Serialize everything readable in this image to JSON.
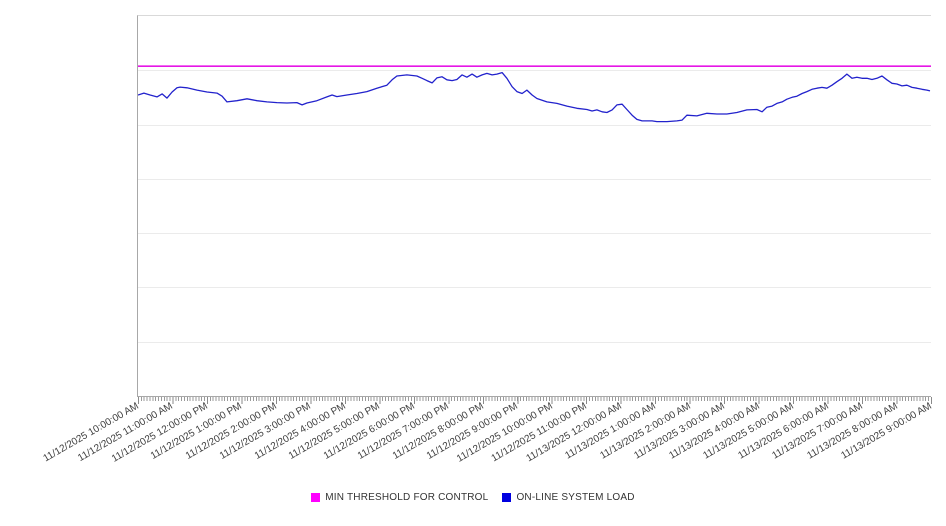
{
  "page": {
    "background": "#ffffff"
  },
  "legend": {
    "items": [
      {
        "label": "MIN THRESHOLD FOR CONTROL",
        "color": "#ff00ff"
      },
      {
        "label": "ON-LINE SYSTEM LOAD",
        "color": "#0000e0"
      }
    ]
  },
  "chart_data": {
    "type": "line",
    "title": "",
    "xlabel": "",
    "ylabel": "",
    "grid": true,
    "legend_position": "bottom-center",
    "y_axis": {
      "tick_labels_visible": false,
      "gridline_count": 6,
      "range_pct": [
        0,
        100
      ]
    },
    "x_axis": {
      "hours_span": 23,
      "minor_tick_interval_minutes": 5,
      "tick_labels": [
        "11/12/2025 10:00:00 AM",
        "11/12/2025 11:00:00 AM",
        "11/12/2025 12:00:00 PM",
        "11/12/2025 1:00:00 PM",
        "11/12/2025 2:00:00 PM",
        "11/12/2025 3:00:00 PM",
        "11/12/2025 4:00:00 PM",
        "11/12/2025 5:00:00 PM",
        "11/12/2025 6:00:00 PM",
        "11/12/2025 7:00:00 PM",
        "11/12/2025 8:00:00 PM",
        "11/12/2025 9:00:00 PM",
        "11/12/2025 10:00:00 PM",
        "11/12/2025 11:00:00 PM",
        "11/13/2025 12:00:00 AM",
        "11/13/2025 1:00:00 AM",
        "11/13/2025 2:00:00 AM",
        "11/13/2025 3:00:00 AM",
        "11/13/2025 4:00:00 AM",
        "11/13/2025 5:00:00 AM",
        "11/13/2025 6:00:00 AM",
        "11/13/2025 7:00:00 AM",
        "11/13/2025 8:00:00 AM",
        "11/13/2025 9:00:00 AM"
      ]
    },
    "series": [
      {
        "name": "MIN THRESHOLD FOR CONTROL",
        "type": "threshold",
        "color": "#e616e6",
        "value_pct": 86.8
      },
      {
        "name": "ON-LINE SYSTEM LOAD",
        "type": "line",
        "color": "#2222cc",
        "points": [
          [
            0,
            79.2
          ],
          [
            0.17,
            79.7
          ],
          [
            0.35,
            79.2
          ],
          [
            0.55,
            78.7
          ],
          [
            0.7,
            79.5
          ],
          [
            0.84,
            78.4
          ],
          [
            0.99,
            80.0
          ],
          [
            1.13,
            81.1
          ],
          [
            1.22,
            81.3
          ],
          [
            1.42,
            81.1
          ],
          [
            1.71,
            80.5
          ],
          [
            2.0,
            80.0
          ],
          [
            2.29,
            79.7
          ],
          [
            2.44,
            78.9
          ],
          [
            2.58,
            77.4
          ],
          [
            2.87,
            77.7
          ],
          [
            3.16,
            78.2
          ],
          [
            3.45,
            77.7
          ],
          [
            3.74,
            77.4
          ],
          [
            4.03,
            77.2
          ],
          [
            4.32,
            77.1
          ],
          [
            4.61,
            77.2
          ],
          [
            4.76,
            76.6
          ],
          [
            4.9,
            77.1
          ],
          [
            5.19,
            77.7
          ],
          [
            5.48,
            78.7
          ],
          [
            5.63,
            79.2
          ],
          [
            5.77,
            78.8
          ],
          [
            6.06,
            79.2
          ],
          [
            6.35,
            79.6
          ],
          [
            6.64,
            80.1
          ],
          [
            6.93,
            81.0
          ],
          [
            7.22,
            81.8
          ],
          [
            7.37,
            83.2
          ],
          [
            7.51,
            84.2
          ],
          [
            7.8,
            84.5
          ],
          [
            8.09,
            84.2
          ],
          [
            8.24,
            83.6
          ],
          [
            8.38,
            83.0
          ],
          [
            8.53,
            82.4
          ],
          [
            8.67,
            83.7
          ],
          [
            8.82,
            84.0
          ],
          [
            8.96,
            83.2
          ],
          [
            9.11,
            83.0
          ],
          [
            9.25,
            83.3
          ],
          [
            9.4,
            84.5
          ],
          [
            9.54,
            83.9
          ],
          [
            9.69,
            84.7
          ],
          [
            9.83,
            83.9
          ],
          [
            9.98,
            84.5
          ],
          [
            10.12,
            84.9
          ],
          [
            10.27,
            84.5
          ],
          [
            10.41,
            84.7
          ],
          [
            10.56,
            85.1
          ],
          [
            10.7,
            83.6
          ],
          [
            10.85,
            81.4
          ],
          [
            10.99,
            80.1
          ],
          [
            11.14,
            79.6
          ],
          [
            11.28,
            80.5
          ],
          [
            11.43,
            79.2
          ],
          [
            11.57,
            78.3
          ],
          [
            11.86,
            77.4
          ],
          [
            12.15,
            77.0
          ],
          [
            12.44,
            76.3
          ],
          [
            12.73,
            75.7
          ],
          [
            13.02,
            75.4
          ],
          [
            13.17,
            75.0
          ],
          [
            13.31,
            75.3
          ],
          [
            13.46,
            74.8
          ],
          [
            13.6,
            74.6
          ],
          [
            13.75,
            75.3
          ],
          [
            13.89,
            76.6
          ],
          [
            14.04,
            76.8
          ],
          [
            14.18,
            75.4
          ],
          [
            14.33,
            73.9
          ],
          [
            14.47,
            72.8
          ],
          [
            14.62,
            72.4
          ],
          [
            14.76,
            72.4
          ],
          [
            14.91,
            72.4
          ],
          [
            15.05,
            72.2
          ],
          [
            15.34,
            72.2
          ],
          [
            15.63,
            72.4
          ],
          [
            15.78,
            72.6
          ],
          [
            15.92,
            73.9
          ],
          [
            16.21,
            73.7
          ],
          [
            16.5,
            74.4
          ],
          [
            16.79,
            74.2
          ],
          [
            17.08,
            74.2
          ],
          [
            17.37,
            74.6
          ],
          [
            17.66,
            75.3
          ],
          [
            17.95,
            75.4
          ],
          [
            18.1,
            74.8
          ],
          [
            18.24,
            76.0
          ],
          [
            18.39,
            76.3
          ],
          [
            18.53,
            77.0
          ],
          [
            18.68,
            77.4
          ],
          [
            18.82,
            78.1
          ],
          [
            18.97,
            78.6
          ],
          [
            19.11,
            78.9
          ],
          [
            19.26,
            79.6
          ],
          [
            19.4,
            80.1
          ],
          [
            19.55,
            80.7
          ],
          [
            19.69,
            81.0
          ],
          [
            19.84,
            81.2
          ],
          [
            19.98,
            81.0
          ],
          [
            20.13,
            81.8
          ],
          [
            20.27,
            82.7
          ],
          [
            20.42,
            83.6
          ],
          [
            20.56,
            84.7
          ],
          [
            20.71,
            83.6
          ],
          [
            20.85,
            83.9
          ],
          [
            21.0,
            83.6
          ],
          [
            21.14,
            83.6
          ],
          [
            21.29,
            83.3
          ],
          [
            21.43,
            83.6
          ],
          [
            21.58,
            84.2
          ],
          [
            21.72,
            83.2
          ],
          [
            21.87,
            82.3
          ],
          [
            22.01,
            82.1
          ],
          [
            22.16,
            81.6
          ],
          [
            22.3,
            81.8
          ],
          [
            22.45,
            81.2
          ],
          [
            22.59,
            81.0
          ],
          [
            22.74,
            80.7
          ],
          [
            22.88,
            80.5
          ],
          [
            22.97,
            80.3
          ]
        ]
      }
    ]
  }
}
